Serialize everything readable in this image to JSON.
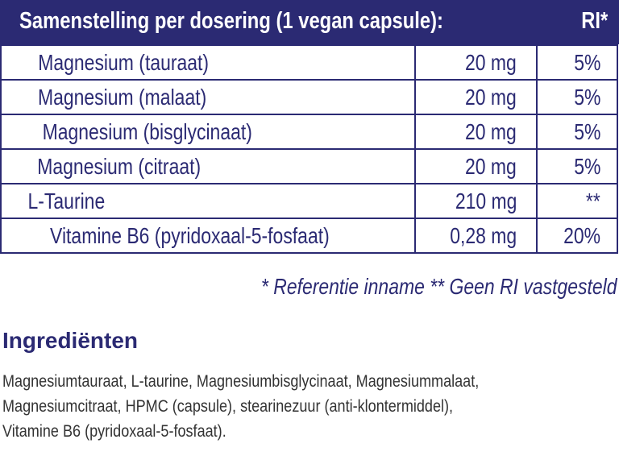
{
  "header": {
    "title": "Samenstelling per dosering (1 vegan capsule):",
    "ri": "RI*"
  },
  "rows": [
    {
      "name": "Magnesium (tauraat)",
      "amount": "20 mg",
      "ri": "5%"
    },
    {
      "name": "Magnesium (malaat)",
      "amount": "20 mg",
      "ri": "5%"
    },
    {
      "name": "Magnesium (bisglycinaat)",
      "amount": "20 mg",
      "ri": "5%"
    },
    {
      "name": "Magnesium (citraat)",
      "amount": "20 mg",
      "ri": "5%"
    },
    {
      "name": "L-Taurine",
      "amount": "210 mg",
      "ri": "**"
    },
    {
      "name": "Vitamine B6 (pyridoxaal-5-fosfaat)",
      "amount": "0,28 mg",
      "ri": "20%"
    }
  ],
  "footnote": "* Referentie inname  ** Geen RI vastgesteld",
  "ingredients": {
    "title": "Ingrediënten",
    "lines": [
      "Magnesiumtauraat, L-taurine, Magnesiumbisglycinaat, Magnesiummalaat,",
      "Magnesiumcitraat, HPMC (capsule), stearinezuur (anti-klontermiddel),",
      "Vitamine B6 (pyridoxaal-5-fosfaat)."
    ]
  },
  "colors": {
    "brand": "#2b2a73",
    "text": "#333333"
  }
}
